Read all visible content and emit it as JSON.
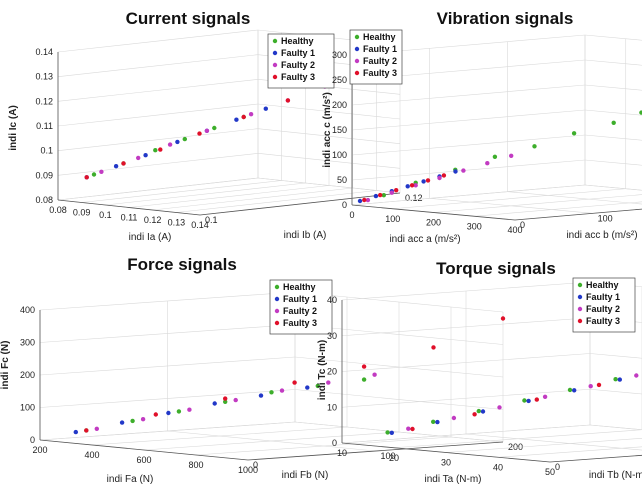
{
  "legend": [
    "Healthy",
    "Faulty 1",
    "Faulty 2",
    "Faulty 3"
  ],
  "colors": {
    "Healthy": "#3dae2b",
    "Faulty 1": "#2238c8",
    "Faulty 2": "#c23bc2",
    "Faulty 3": "#e0102a"
  },
  "chart_data": [
    {
      "type": "scatter",
      "title": "Current signals",
      "xlabel": "indi Ia (A)",
      "ylabel": "indi Ib (A)",
      "zlabel": "indi Ic (A)",
      "xticks": [
        "0.08",
        "0.09",
        "0.1",
        "0.11",
        "0.12",
        "0.13",
        "0.14"
      ],
      "yticks": [
        "0.1",
        "0.12"
      ],
      "zticks": [
        "0.08",
        "0.09",
        "0.1",
        "0.11",
        "0.12",
        "0.13",
        "0.14"
      ],
      "xlim": [
        0.08,
        0.14
      ],
      "ylim": [
        0.09,
        0.13
      ],
      "zlim": [
        0.08,
        0.14
      ],
      "series": [
        {
          "name": "Healthy",
          "x": [
            0.091,
            0.095,
            0.1,
            0.104,
            0.108,
            0.112
          ],
          "y": [
            0.092,
            0.096,
            0.1,
            0.104,
            0.108,
            0.112
          ],
          "z": [
            0.091,
            0.095,
            0.1,
            0.104,
            0.108,
            0.112
          ]
        },
        {
          "name": "Faulty 1",
          "x": [
            0.09,
            0.094,
            0.098,
            0.103,
            0.107,
            0.111,
            0.115
          ],
          "y": [
            0.091,
            0.095,
            0.099,
            0.103,
            0.107,
            0.111,
            0.115
          ],
          "z": [
            0.09,
            0.094,
            0.098,
            0.103,
            0.107,
            0.111,
            0.115
          ]
        },
        {
          "name": "Faulty 2",
          "x": [
            0.092,
            0.097,
            0.102,
            0.107,
            0.113,
            0.118,
            0.123,
            0.128
          ],
          "y": [
            0.093,
            0.098,
            0.102,
            0.107,
            0.113,
            0.118,
            0.123,
            0.128
          ],
          "z": [
            0.092,
            0.097,
            0.102,
            0.107,
            0.113,
            0.118,
            0.123,
            0.128
          ]
        },
        {
          "name": "Faulty 3",
          "x": [
            0.09,
            0.095,
            0.1,
            0.106,
            0.112,
            0.118,
            0.124,
            0.127
          ],
          "y": [
            0.091,
            0.096,
            0.101,
            0.106,
            0.112,
            0.118,
            0.124,
            0.127
          ],
          "z": [
            0.09,
            0.095,
            0.1,
            0.106,
            0.112,
            0.118,
            0.124,
            0.127
          ]
        }
      ]
    },
    {
      "type": "scatter",
      "title": "Vibration signals",
      "xlabel": "indi acc a  (m/s²)",
      "ylabel": "indi acc b  (m/s²)",
      "zlabel": "indi acc c  (m/s²)",
      "xticks": [
        "0",
        "100",
        "200",
        "300",
        "400"
      ],
      "yticks": [
        "0",
        "100",
        "200",
        "300"
      ],
      "zticks": [
        "0",
        "50",
        "100",
        "150",
        "200",
        "250",
        "300"
      ],
      "xlim": [
        0,
        400
      ],
      "ylim": [
        0,
        300
      ],
      "zlim": [
        0,
        300
      ],
      "series": [
        {
          "name": "Healthy",
          "x": [
            40,
            80,
            120,
            160,
            200,
            240,
            280,
            310,
            340,
            370,
            390,
            400
          ],
          "y": [
            20,
            40,
            70,
            100,
            130,
            160,
            190,
            210,
            230,
            250,
            260,
            270
          ],
          "z": [
            20,
            45,
            70,
            95,
            115,
            140,
            160,
            180,
            200,
            220,
            240,
            265
          ]
        },
        {
          "name": "Faulty 1",
          "x": [
            10,
            30,
            50,
            70,
            90,
            110,
            130
          ],
          "y": [
            5,
            15,
            25,
            35,
            45,
            55,
            65
          ],
          "z": [
            8,
            18,
            28,
            38,
            48,
            58,
            68
          ]
        },
        {
          "name": "Faulty 2",
          "x": [
            20,
            50,
            80,
            110,
            140,
            170,
            200
          ],
          "y": [
            10,
            25,
            40,
            55,
            70,
            85,
            100
          ],
          "z": [
            10,
            25,
            40,
            55,
            70,
            85,
            100
          ]
        },
        {
          "name": "Faulty 3",
          "x": [
            15,
            35,
            55,
            75,
            95,
            115
          ],
          "y": [
            8,
            18,
            28,
            38,
            48,
            58
          ],
          "z": [
            10,
            20,
            30,
            40,
            50,
            60
          ]
        }
      ]
    },
    {
      "type": "scatter",
      "title": "Force signals",
      "xlabel": "indi Fa  (N)",
      "ylabel": "indi Fb  (N)",
      "zlabel": "indi Fc  (N)",
      "xticks": [
        "200",
        "400",
        "600",
        "800",
        "1000"
      ],
      "yticks": [
        "0",
        "100",
        "200"
      ],
      "zticks": [
        "0",
        "100",
        "200",
        "300",
        "400"
      ],
      "xlim": [
        0,
        1000
      ],
      "ylim": [
        0,
        200
      ],
      "zlim": [
        0,
        400
      ],
      "series": [
        {
          "name": "Healthy",
          "x": [
            100,
            200,
            300,
            400,
            500,
            600,
            700
          ],
          "y": [
            20,
            40,
            60,
            80,
            100,
            120,
            140
          ],
          "z": [
            30,
            60,
            90,
            120,
            150,
            170,
            190
          ]
        },
        {
          "name": "Faulty 1",
          "x": [
            80,
            180,
            280,
            380,
            480,
            580
          ],
          "y": [
            15,
            35,
            55,
            75,
            95,
            115
          ],
          "z": [
            25,
            55,
            85,
            115,
            140,
            165
          ]
        },
        {
          "name": "Faulty 2",
          "x": [
            120,
            220,
            320,
            420,
            520,
            620,
            720
          ],
          "y": [
            25,
            45,
            65,
            85,
            105,
            125,
            145
          ],
          "z": [
            35,
            65,
            95,
            125,
            155,
            180,
            205
          ]
        },
        {
          "name": "Faulty 3",
          "x": [
            100,
            250,
            400,
            550,
            700,
            850,
            1000
          ],
          "y": [
            20,
            50,
            80,
            110,
            140,
            170,
            200
          ],
          "z": [
            30,
            80,
            130,
            180,
            230,
            290,
            380
          ]
        }
      ]
    },
    {
      "type": "scatter",
      "title": "Torque signals",
      "xlabel": "indi Ta  (N-m)",
      "ylabel": "indi Tb  (N-m)",
      "zlabel": "indi Tc  (N-m)",
      "xticks": [
        "10",
        "20",
        "30",
        "40",
        "50"
      ],
      "yticks": [
        "0",
        "10",
        "20"
      ],
      "zticks": [
        "0",
        "10",
        "20",
        "30",
        "40"
      ],
      "xlim": [
        0,
        50
      ],
      "ylim": [
        0,
        20
      ],
      "zlim": [
        0,
        40
      ],
      "series": [
        {
          "name": "Healthy",
          "x": [
            5,
            10,
            15,
            20,
            25,
            30,
            35,
            40
          ],
          "y": [
            2,
            4,
            6,
            8,
            10,
            12,
            14,
            16
          ],
          "z": [
            3,
            6,
            9,
            12,
            15,
            18,
            22,
            26
          ]
        },
        {
          "name": "Faulty 1",
          "x": [
            6,
            11,
            16,
            21,
            26,
            31,
            36
          ],
          "y": [
            2,
            4,
            6,
            8,
            10,
            12,
            14
          ],
          "z": [
            3,
            6,
            9,
            12,
            15,
            18,
            21
          ]
        },
        {
          "name": "Faulty 2",
          "x": [
            7,
            12,
            17,
            22,
            27,
            32,
            37
          ],
          "y": [
            3,
            5,
            7,
            9,
            11,
            13,
            15
          ],
          "z": [
            4,
            7,
            10,
            13,
            16,
            19,
            22
          ]
        },
        {
          "name": "Faulty 3",
          "x": [
            8,
            14,
            20,
            26,
            32,
            38,
            44,
            48
          ],
          "y": [
            3,
            6,
            9,
            12,
            15,
            18,
            20,
            20
          ],
          "z": [
            4,
            8,
            12,
            16,
            20,
            25,
            30,
            38
          ]
        }
      ]
    }
  ]
}
